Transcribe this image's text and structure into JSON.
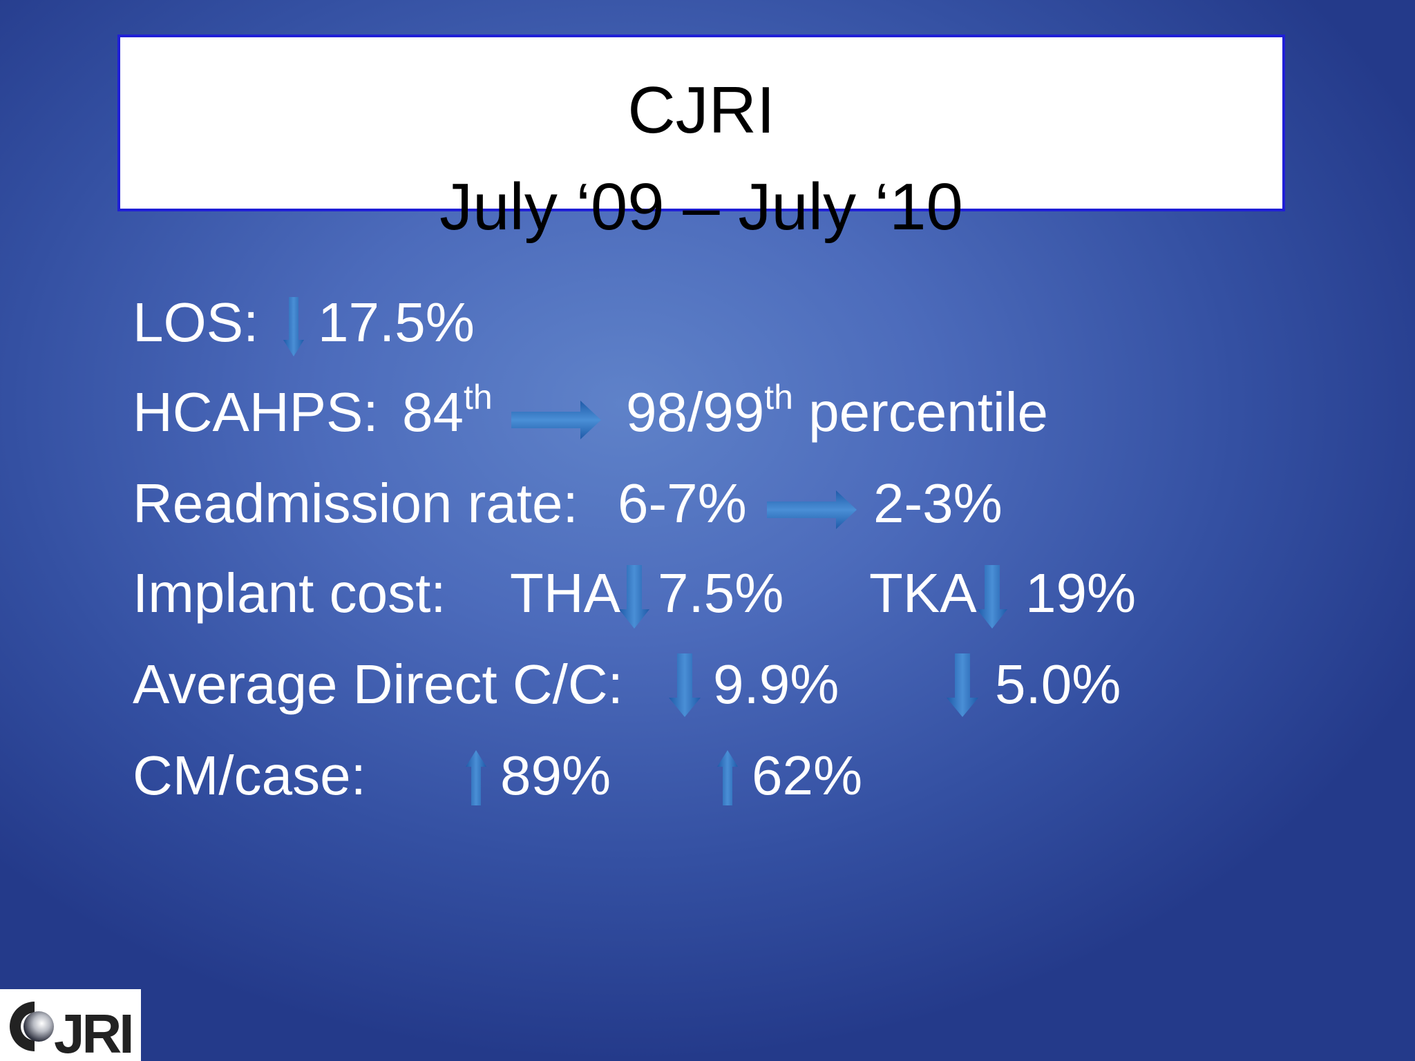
{
  "title": {
    "line1": "CJRI",
    "line2": "July ‘09 – July ‘10"
  },
  "rows": {
    "los": {
      "label": "LOS:",
      "value": "17.5%"
    },
    "hcahps": {
      "label": "HCAHPS:",
      "from_num": "84",
      "from_sup": "th",
      "to_num": "98/99",
      "to_sup": "th",
      "to_text": "percentile"
    },
    "readmission": {
      "label": "Readmission rate:",
      "from": "6-7%",
      "to": "2-3%"
    },
    "implant": {
      "label": "Implant cost:",
      "tha_label": "THA",
      "tha_value": "7.5%",
      "tka_label": "TKA",
      "tka_value": "19%"
    },
    "direct": {
      "label": "Average Direct C/C:",
      "value1": "9.9%",
      "value2": "5.0%"
    },
    "cm": {
      "label": "CM/case:",
      "value1": "89%",
      "value2": "62%"
    }
  },
  "icons": {
    "down": "arrow-down-icon",
    "up": "arrow-up-icon",
    "right": "arrow-right-icon"
  },
  "colors": {
    "background": "#4c6bbb",
    "arrow": "#2e6db8",
    "title_border": "#1f1fd6",
    "text": "#ffffff"
  },
  "logo": {
    "text": "CJRI"
  }
}
